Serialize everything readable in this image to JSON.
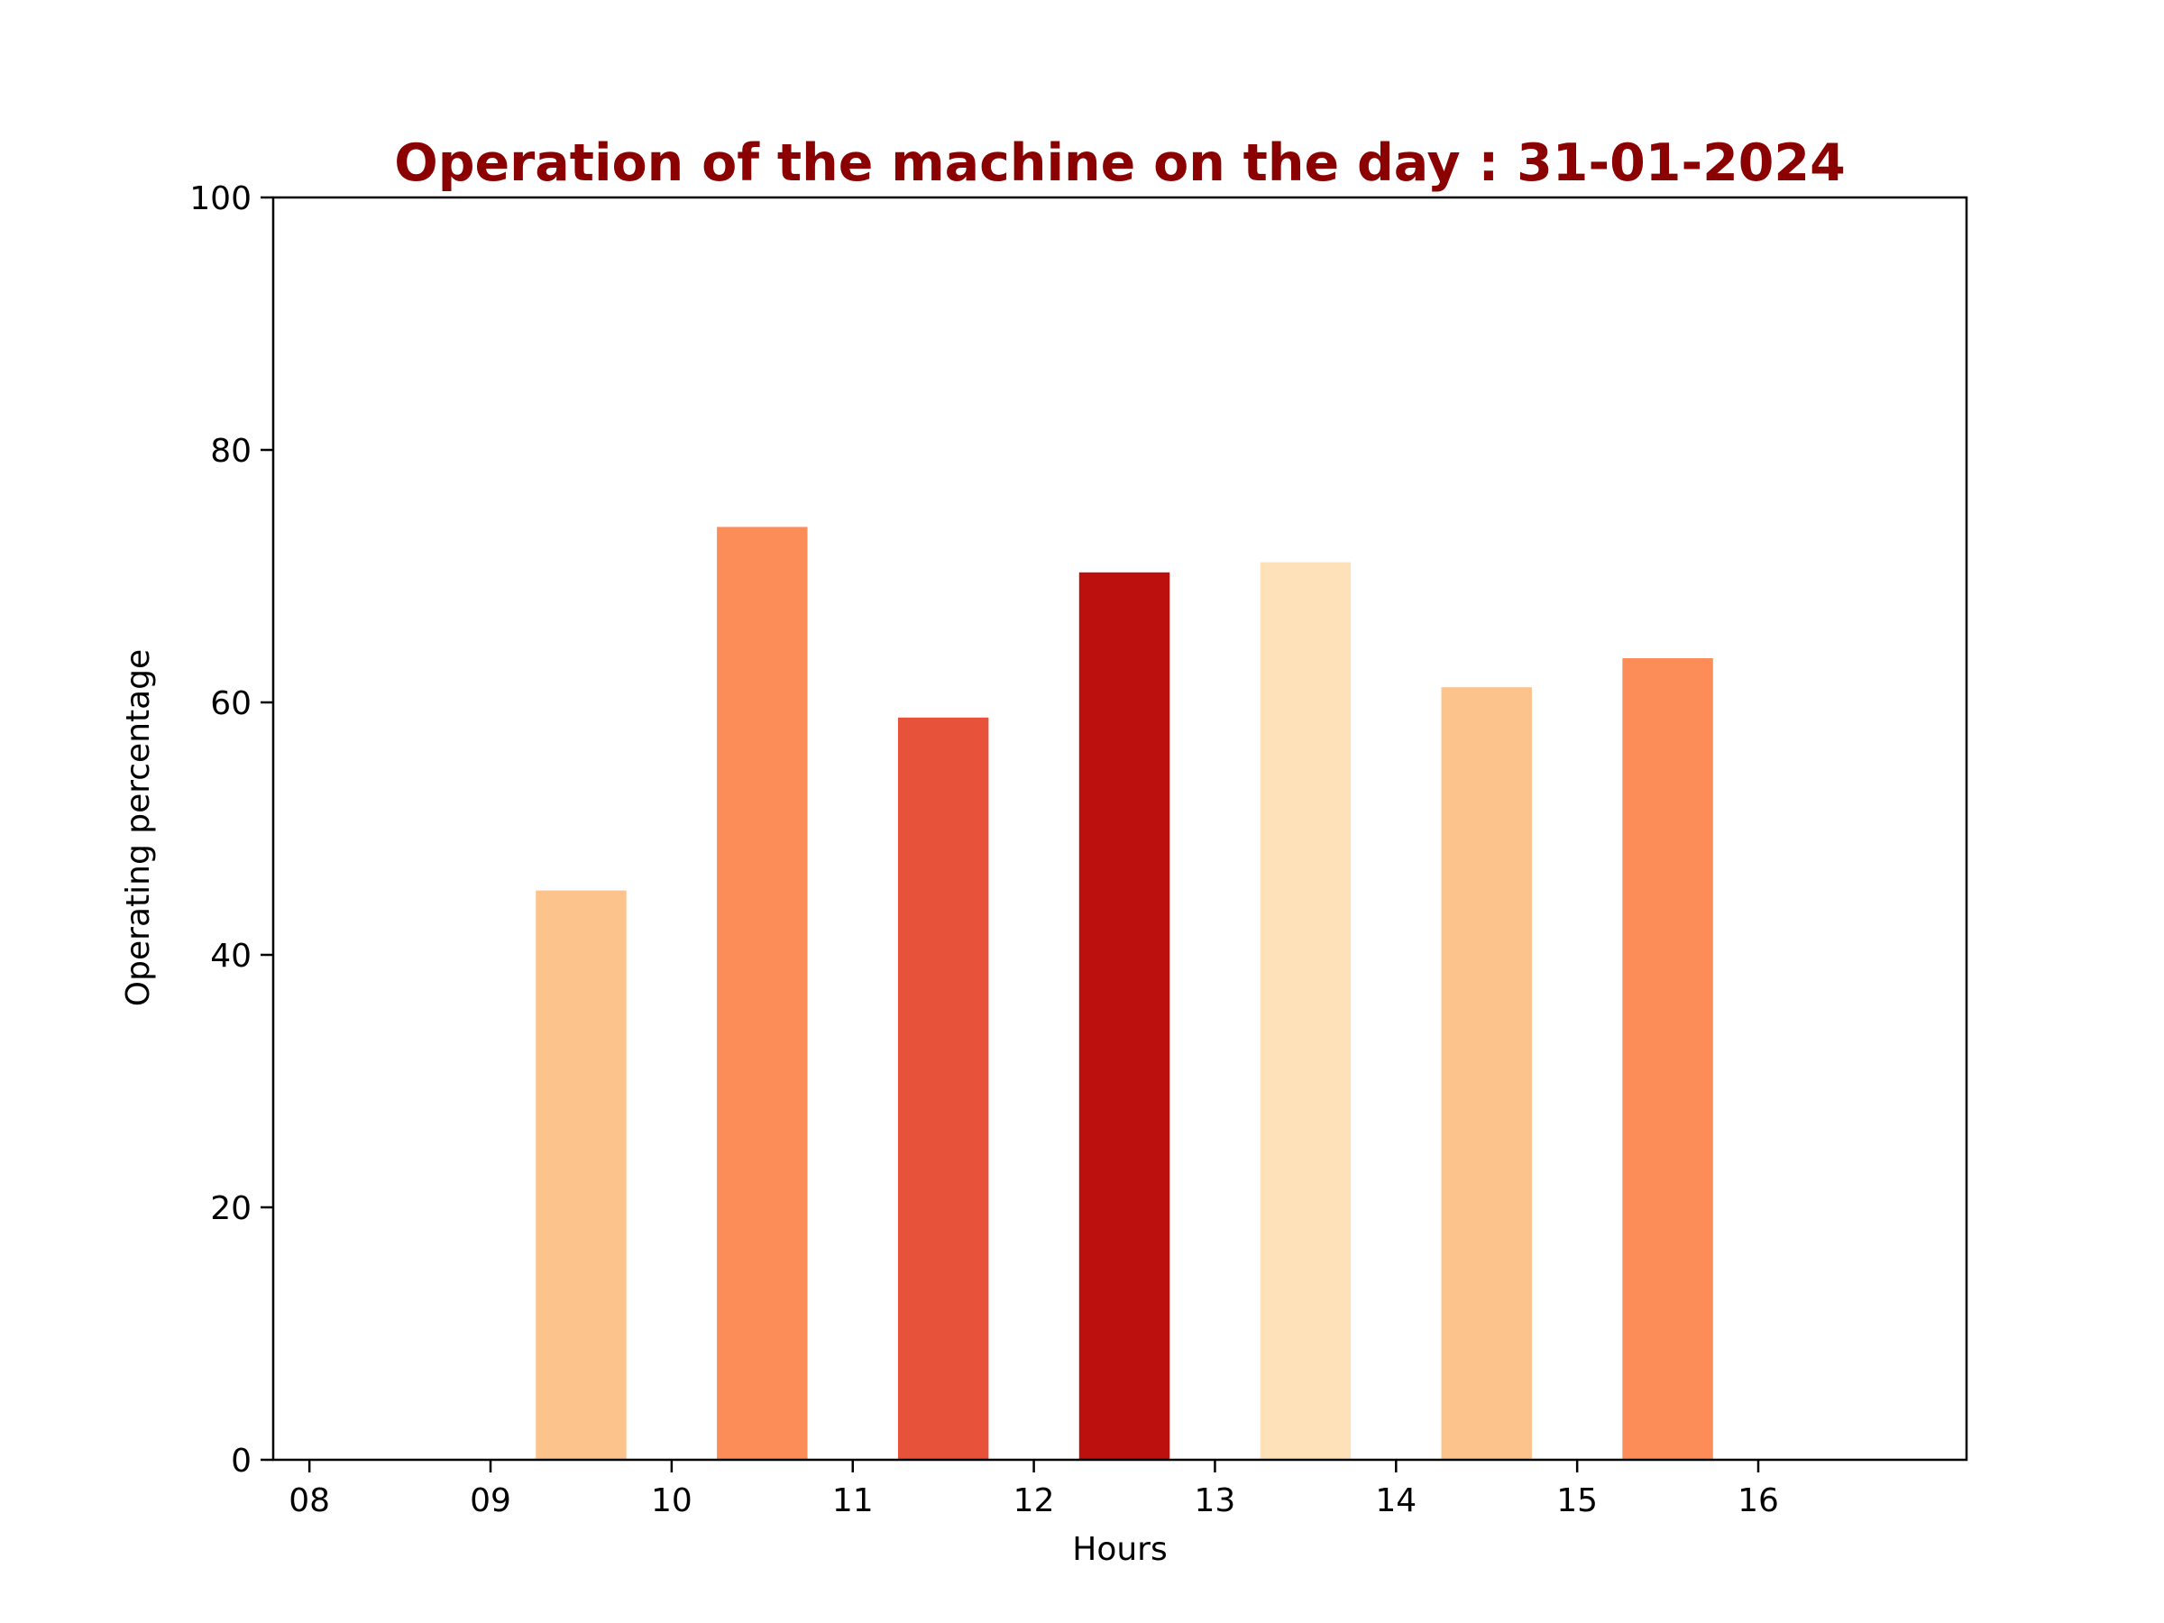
{
  "chart_data": {
    "type": "bar",
    "title": "Operation of the machine on the day : 31-01-2024",
    "xlabel": "Hours",
    "ylabel": "Operating percentage",
    "x_ticks": [
      "08",
      "09",
      "10",
      "11",
      "12",
      "13",
      "14",
      "15",
      "16"
    ],
    "y_ticks": [
      "0",
      "20",
      "40",
      "60",
      "80",
      "100"
    ],
    "ylim": [
      0,
      100
    ],
    "xlim": [
      7.8,
      17.15
    ],
    "grid": false,
    "bars": [
      {
        "x": 9.5,
        "value": 45.1,
        "color": "#fdc38d"
      },
      {
        "x": 10.5,
        "value": 73.9,
        "color": "#fc8d59"
      },
      {
        "x": 11.5,
        "value": 58.8,
        "color": "#e7533a"
      },
      {
        "x": 12.5,
        "value": 70.3,
        "color": "#bb100e"
      },
      {
        "x": 13.5,
        "value": 71.1,
        "color": "#fee1b9"
      },
      {
        "x": 14.5,
        "value": 61.2,
        "color": "#fdc38d"
      },
      {
        "x": 15.5,
        "value": 63.5,
        "color": "#fc8d59"
      }
    ],
    "bar_width": 0.5,
    "colors": {
      "title": "#8b0000",
      "axis": "#000000",
      "background": "#ffffff"
    }
  }
}
